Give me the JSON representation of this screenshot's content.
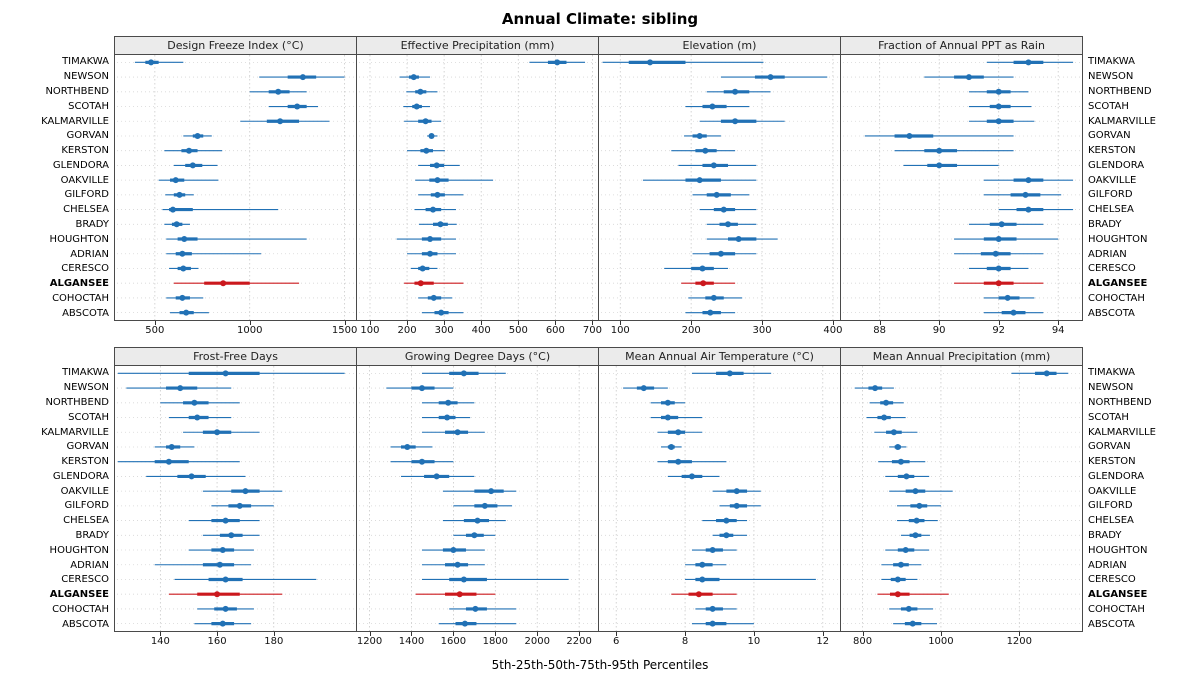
{
  "title": "Annual Climate: sibling",
  "caption": "5th-25th-50th-75th-95th Percentiles",
  "colors": {
    "series": "#2171B5",
    "highlight": "#CB181D",
    "strip_bg": "#EBEBEB",
    "grid": "#C9C9C9",
    "border": "#4A4A4A"
  },
  "chart_data": {
    "type": "dot-interval",
    "subtype": "trellis percentile plot, 2 rows x 4 columns of panels",
    "percentiles": [
      5,
      25,
      50,
      75,
      95
    ],
    "legend": "5th-25th-50th-75th-95th Percentiles",
    "highlight": "ALGANSEE",
    "locations": [
      "TIMAKWA",
      "NEWSON",
      "NORTHBEND",
      "SCOTAH",
      "KALMARVILLE",
      "GORVAN",
      "KERSTON",
      "GLENDORA",
      "OAKVILLE",
      "GILFORD",
      "CHELSEA",
      "BRADY",
      "HOUGHTON",
      "ADRIAN",
      "CERESCO",
      "ALGANSEE",
      "COHOCTAH",
      "ABSCOTA"
    ],
    "panels": [
      {
        "id": "design-freeze-index",
        "title": "Design Freeze Index (°C)",
        "row": 0,
        "xlim": [
          290,
          1560
        ],
        "ticks": [
          500,
          1000,
          1500
        ],
        "values": [
          [
            395,
            450,
            480,
            520,
            650
          ],
          [
            1050,
            1200,
            1280,
            1350,
            1500
          ],
          [
            1000,
            1100,
            1150,
            1210,
            1300
          ],
          [
            1100,
            1200,
            1250,
            1300,
            1360
          ],
          [
            950,
            1090,
            1160,
            1260,
            1420
          ],
          [
            650,
            700,
            725,
            755,
            800
          ],
          [
            550,
            640,
            680,
            725,
            855
          ],
          [
            600,
            660,
            700,
            750,
            830
          ],
          [
            520,
            580,
            610,
            655,
            835
          ],
          [
            555,
            600,
            630,
            660,
            705
          ],
          [
            540,
            575,
            595,
            700,
            1150
          ],
          [
            550,
            590,
            615,
            645,
            685
          ],
          [
            560,
            620,
            655,
            725,
            1300
          ],
          [
            560,
            610,
            645,
            695,
            1060
          ],
          [
            575,
            620,
            650,
            690,
            730
          ],
          [
            600,
            760,
            860,
            1000,
            1260
          ],
          [
            560,
            610,
            645,
            685,
            755
          ],
          [
            580,
            630,
            665,
            705,
            785
          ]
        ]
      },
      {
        "id": "effective-precipitation",
        "title": "Effective Precipitation (mm)",
        "row": 0,
        "xlim": [
          65,
          715
        ],
        "ticks": [
          100,
          200,
          300,
          400,
          500,
          600,
          700
        ],
        "values": [
          [
            530,
            580,
            605,
            630,
            680
          ],
          [
            180,
            205,
            218,
            232,
            262
          ],
          [
            198,
            222,
            236,
            252,
            282
          ],
          [
            190,
            214,
            226,
            240,
            262
          ],
          [
            192,
            230,
            250,
            266,
            292
          ],
          [
            254,
            261,
            266,
            272,
            282
          ],
          [
            200,
            236,
            252,
            270,
            302
          ],
          [
            230,
            262,
            280,
            300,
            342
          ],
          [
            222,
            260,
            282,
            312,
            432
          ],
          [
            230,
            264,
            282,
            302,
            352
          ],
          [
            220,
            250,
            270,
            292,
            332
          ],
          [
            232,
            270,
            290,
            310,
            334
          ],
          [
            172,
            240,
            262,
            292,
            332
          ],
          [
            200,
            240,
            262,
            282,
            332
          ],
          [
            210,
            230,
            242,
            260,
            282
          ],
          [
            192,
            220,
            237,
            272,
            352
          ],
          [
            230,
            256,
            272,
            292,
            322
          ],
          [
            240,
            274,
            292,
            312,
            352
          ]
        ]
      },
      {
        "id": "elevation",
        "title": "Elevation (m)",
        "row": 0,
        "xlim": [
          70,
          410
        ],
        "ticks": [
          100,
          200,
          300,
          400
        ],
        "values": [
          [
            75,
            112,
            142,
            192,
            302
          ],
          [
            242,
            290,
            312,
            332,
            392
          ],
          [
            222,
            246,
            262,
            282,
            312
          ],
          [
            192,
            216,
            230,
            250,
            282
          ],
          [
            212,
            242,
            262,
            292,
            332
          ],
          [
            190,
            202,
            212,
            222,
            242
          ],
          [
            172,
            206,
            220,
            236,
            262
          ],
          [
            182,
            216,
            232,
            252,
            292
          ],
          [
            132,
            192,
            212,
            242,
            292
          ],
          [
            202,
            222,
            236,
            256,
            282
          ],
          [
            212,
            232,
            246,
            262,
            292
          ],
          [
            222,
            240,
            252,
            266,
            292
          ],
          [
            222,
            252,
            267,
            292,
            322
          ],
          [
            202,
            226,
            242,
            262,
            292
          ],
          [
            162,
            200,
            216,
            232,
            252
          ],
          [
            186,
            206,
            217,
            232,
            262
          ],
          [
            196,
            220,
            232,
            246,
            272
          ],
          [
            192,
            216,
            227,
            242,
            262
          ]
        ]
      },
      {
        "id": "fraction-ppt-rain",
        "title": "Fraction of Annual PPT as Rain",
        "row": 0,
        "xlim": [
          86.7,
          94.8
        ],
        "ticks": [
          88,
          90,
          92,
          94
        ],
        "values": [
          [
            91.6,
            92.5,
            93.0,
            93.5,
            94.5
          ],
          [
            89.5,
            90.5,
            91.0,
            91.5,
            92.5
          ],
          [
            91.0,
            91.6,
            92.0,
            92.4,
            93.0
          ],
          [
            91.0,
            91.7,
            92.0,
            92.4,
            93.1
          ],
          [
            91.0,
            91.6,
            92.0,
            92.5,
            93.2
          ],
          [
            87.5,
            88.5,
            89.0,
            89.8,
            92.5
          ],
          [
            88.5,
            89.5,
            90.0,
            90.6,
            92.5
          ],
          [
            88.8,
            89.6,
            90.0,
            90.6,
            92.0
          ],
          [
            91.5,
            92.5,
            93.0,
            93.5,
            94.5
          ],
          [
            91.5,
            92.4,
            92.9,
            93.4,
            94.1
          ],
          [
            92.0,
            92.6,
            93.0,
            93.5,
            94.5
          ],
          [
            91.0,
            91.7,
            92.1,
            92.6,
            93.5
          ],
          [
            90.5,
            91.5,
            92.0,
            92.6,
            94.0
          ],
          [
            90.5,
            91.4,
            91.9,
            92.4,
            93.5
          ],
          [
            91.0,
            91.6,
            92.0,
            92.4,
            93.0
          ],
          [
            90.5,
            91.5,
            92.0,
            92.5,
            93.5
          ],
          [
            91.5,
            92.0,
            92.3,
            92.7,
            93.2
          ],
          [
            91.5,
            92.1,
            92.5,
            92.9,
            93.5
          ]
        ]
      },
      {
        "id": "frost-free-days",
        "title": "Frost-Free Days",
        "row": 1,
        "xlim": [
          124,
          209
        ],
        "ticks": [
          140,
          160,
          180
        ],
        "values": [
          [
            125,
            150,
            163,
            175,
            205
          ],
          [
            128,
            142,
            147,
            153,
            165
          ],
          [
            140,
            148,
            152,
            157,
            168
          ],
          [
            143,
            150,
            153,
            157,
            165
          ],
          [
            148,
            155,
            160,
            165,
            175
          ],
          [
            138,
            142,
            144,
            147,
            152
          ],
          [
            125,
            138,
            143,
            150,
            168
          ],
          [
            135,
            146,
            151,
            156,
            170
          ],
          [
            155,
            165,
            170,
            175,
            183
          ],
          [
            158,
            164,
            168,
            172,
            180
          ],
          [
            150,
            158,
            163,
            168,
            175
          ],
          [
            155,
            161,
            165,
            169,
            175
          ],
          [
            150,
            158,
            162,
            166,
            173
          ],
          [
            138,
            155,
            161,
            166,
            172
          ],
          [
            145,
            157,
            163,
            169,
            195
          ],
          [
            143,
            153,
            160,
            168,
            183
          ],
          [
            153,
            159,
            163,
            167,
            173
          ],
          [
            152,
            158,
            162,
            166,
            172
          ]
        ]
      },
      {
        "id": "growing-degree-days",
        "title": "Growing Degree Days (°C)",
        "row": 1,
        "xlim": [
          1140,
          2290
        ],
        "ticks": [
          1200,
          1400,
          1600,
          1800,
          2000,
          2200
        ],
        "values": [
          [
            1450,
            1580,
            1650,
            1720,
            1850
          ],
          [
            1280,
            1400,
            1450,
            1510,
            1600
          ],
          [
            1450,
            1530,
            1575,
            1620,
            1700
          ],
          [
            1450,
            1530,
            1570,
            1610,
            1680
          ],
          [
            1450,
            1560,
            1620,
            1670,
            1750
          ],
          [
            1300,
            1350,
            1380,
            1420,
            1500
          ],
          [
            1300,
            1400,
            1450,
            1510,
            1600
          ],
          [
            1350,
            1460,
            1520,
            1580,
            1700
          ],
          [
            1550,
            1700,
            1780,
            1840,
            1900
          ],
          [
            1600,
            1700,
            1750,
            1810,
            1880
          ],
          [
            1550,
            1650,
            1715,
            1770,
            1850
          ],
          [
            1600,
            1660,
            1700,
            1745,
            1800
          ],
          [
            1450,
            1550,
            1600,
            1660,
            1750
          ],
          [
            1450,
            1560,
            1620,
            1670,
            1750
          ],
          [
            1450,
            1580,
            1650,
            1760,
            2150
          ],
          [
            1420,
            1560,
            1630,
            1710,
            1800
          ],
          [
            1580,
            1660,
            1705,
            1760,
            1900
          ],
          [
            1530,
            1610,
            1655,
            1710,
            1900
          ]
        ]
      },
      {
        "id": "mean-annual-air-temperature",
        "title": "Mean Annual Air Temperature (°C)",
        "row": 1,
        "xlim": [
          5.5,
          12.5
        ],
        "ticks": [
          6,
          8,
          10,
          12
        ],
        "values": [
          [
            8.2,
            8.9,
            9.3,
            9.7,
            10.5
          ],
          [
            6.2,
            6.6,
            6.8,
            7.1,
            7.5
          ],
          [
            7.0,
            7.3,
            7.5,
            7.7,
            8.0
          ],
          [
            7.0,
            7.3,
            7.5,
            7.8,
            8.5
          ],
          [
            7.2,
            7.5,
            7.8,
            8.0,
            8.5
          ],
          [
            7.3,
            7.5,
            7.6,
            7.7,
            7.9
          ],
          [
            7.2,
            7.5,
            7.8,
            8.2,
            9.2
          ],
          [
            7.5,
            7.9,
            8.2,
            8.5,
            9.0
          ],
          [
            8.8,
            9.2,
            9.5,
            9.8,
            10.2
          ],
          [
            9.0,
            9.3,
            9.5,
            9.8,
            10.2
          ],
          [
            8.5,
            8.9,
            9.2,
            9.5,
            9.8
          ],
          [
            8.8,
            9.0,
            9.2,
            9.4,
            9.8
          ],
          [
            8.2,
            8.6,
            8.8,
            9.1,
            9.5
          ],
          [
            8.0,
            8.3,
            8.5,
            8.8,
            9.2
          ],
          [
            8.0,
            8.3,
            8.5,
            9.0,
            11.8
          ],
          [
            7.6,
            8.1,
            8.4,
            8.8,
            9.5
          ],
          [
            8.3,
            8.6,
            8.8,
            9.1,
            9.5
          ],
          [
            8.2,
            8.6,
            8.8,
            9.2,
            10.0
          ]
        ]
      },
      {
        "id": "mean-annual-precipitation",
        "title": "Mean Annual Precipitation (mm)",
        "row": 1,
        "xlim": [
          745,
          1360
        ],
        "ticks": [
          800,
          1000,
          1200
        ],
        "values": [
          [
            1180,
            1240,
            1270,
            1295,
            1325
          ],
          [
            780,
            815,
            832,
            850,
            880
          ],
          [
            818,
            845,
            860,
            878,
            905
          ],
          [
            810,
            838,
            855,
            872,
            910
          ],
          [
            830,
            860,
            880,
            900,
            940
          ],
          [
            868,
            882,
            890,
            898,
            912
          ],
          [
            840,
            875,
            898,
            920,
            960
          ],
          [
            858,
            890,
            912,
            932,
            970
          ],
          [
            868,
            910,
            935,
            960,
            1030
          ],
          [
            888,
            922,
            945,
            965,
            1000
          ],
          [
            888,
            918,
            938,
            958,
            992
          ],
          [
            898,
            920,
            935,
            950,
            972
          ],
          [
            858,
            890,
            910,
            932,
            970
          ],
          [
            848,
            878,
            898,
            918,
            950
          ],
          [
            848,
            872,
            890,
            910,
            940
          ],
          [
            838,
            870,
            890,
            920,
            1020
          ],
          [
            868,
            898,
            918,
            940,
            980
          ],
          [
            878,
            908,
            928,
            950,
            990
          ]
        ]
      }
    ]
  }
}
